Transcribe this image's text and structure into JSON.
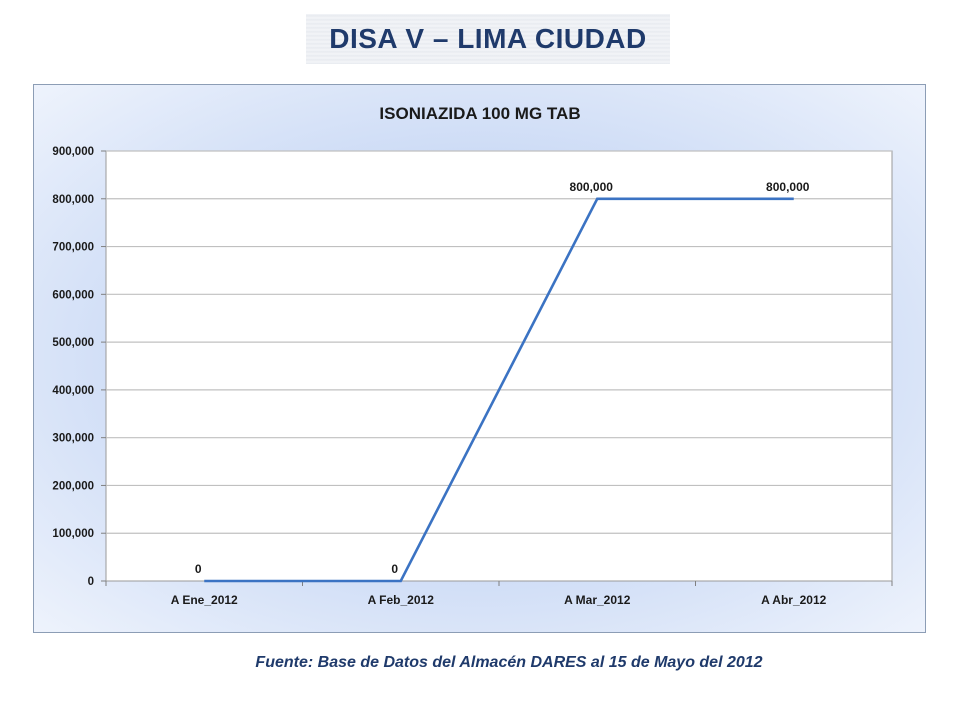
{
  "page_title": "DISA V – LIMA CIUDAD",
  "footer": "Fuente: Base de Datos del Almacén DARES al 15 de Mayo del 2012",
  "colors": {
    "line": "#3b73c3",
    "title": "#1f3a6b",
    "grid": "#c0c0c0"
  },
  "chart_data": {
    "type": "line",
    "title": "ISONIAZIDA 100 MG TAB",
    "xlabel": "",
    "ylabel": "",
    "categories": [
      "A Ene_2012",
      "A Feb_2012",
      "A Mar_2012",
      "A Abr_2012"
    ],
    "series": [
      {
        "values": [
          0,
          0,
          800000,
          800000
        ]
      }
    ],
    "data_labels": [
      "0",
      "0",
      "800,000",
      "800,000"
    ],
    "ylim": [
      0,
      900000
    ],
    "yticks": [
      0,
      100000,
      200000,
      300000,
      400000,
      500000,
      600000,
      700000,
      800000,
      900000
    ],
    "ytick_labels": [
      "0",
      "100,000",
      "200,000",
      "300,000",
      "400,000",
      "500,000",
      "600,000",
      "700,000",
      "800,000",
      "900,000"
    ],
    "grid": true,
    "legend": "none"
  }
}
